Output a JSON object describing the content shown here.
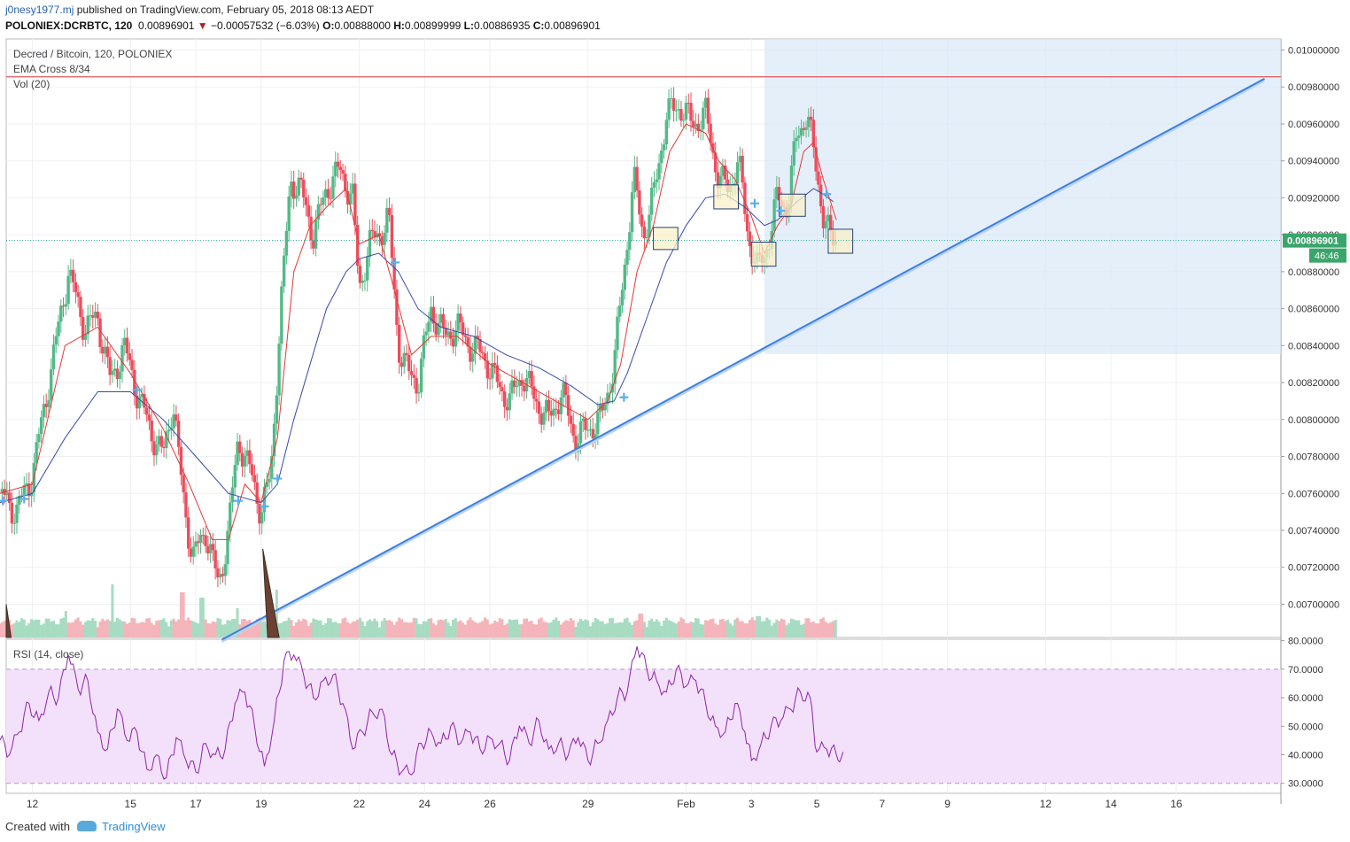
{
  "header": {
    "user": "j0nesy1977.mj",
    "published": "published on TradingView.com, February 05, 2018 08:13 AEDT",
    "symbol": "POLONIEX:DCRBTC, 120",
    "last": "0.00896901",
    "change": "−0.00057532 (−6.03%)",
    "o_label": "O:",
    "o": "0.00888000",
    "h_label": "H:",
    "h": "0.00899999",
    "l_label": "L:",
    "l": "0.00886935",
    "c_label": "C:",
    "c": "0.00896901"
  },
  "legend": {
    "title": "Decred / Bitcoin, 120, POLONIEX",
    "ema": "EMA Cross 8/34",
    "vol": "Vol (20)",
    "rsi": "RSI (14, close)"
  },
  "price_badge": "0.00896901",
  "countdown_badge": "46:46",
  "footer": {
    "created": "Created with",
    "brand": "TradingView"
  },
  "colors": {
    "up": "#53b987",
    "down": "#eb4d5c",
    "ema_fast": "#e53935",
    "ema_slow": "#3949ab",
    "rsi": "#8e24aa",
    "trend": "#3d7fe0",
    "resistance": "#e0575c",
    "rsi_band": "#f3e1fb"
  },
  "chart_data": [
    {
      "type": "candlestick",
      "title": "Decred / Bitcoin, 120, POLONIEX",
      "y_ticks": [
        "0.01000000",
        "0.00980000",
        "0.00960000",
        "0.00940000",
        "0.00920000",
        "0.00900000",
        "0.00880000",
        "0.00860000",
        "0.00840000",
        "0.00820000",
        "0.00800000",
        "0.00780000",
        "0.00760000",
        "0.00740000",
        "0.00720000",
        "0.00700000"
      ],
      "ylim": [
        0.00682,
        0.01006
      ],
      "x_ticks": [
        "12",
        "15",
        "17",
        "19",
        "22",
        "24",
        "26",
        "29",
        "Feb",
        "3",
        "5",
        "7",
        "9",
        "12",
        "14",
        "16"
      ],
      "x_tick_index": [
        1,
        4,
        6,
        8,
        11,
        13,
        15,
        18,
        21,
        23,
        25,
        27,
        29,
        32,
        34,
        36
      ],
      "x_range_index": [
        0.2,
        39.2
      ],
      "price_path": [
        {
          "x": 0.0,
          "p": 0.0076
        },
        {
          "x": 0.5,
          "p": 0.0075
        },
        {
          "x": 1.0,
          "p": 0.0077
        },
        {
          "x": 1.6,
          "p": 0.0083
        },
        {
          "x": 2.1,
          "p": 0.0088
        },
        {
          "x": 2.6,
          "p": 0.0085
        },
        {
          "x": 3.0,
          "p": 0.00855
        },
        {
          "x": 3.4,
          "p": 0.0082
        },
        {
          "x": 3.8,
          "p": 0.0084
        },
        {
          "x": 4.2,
          "p": 0.00815
        },
        {
          "x": 4.6,
          "p": 0.00795
        },
        {
          "x": 5.0,
          "p": 0.0078
        },
        {
          "x": 5.3,
          "p": 0.0081
        },
        {
          "x": 5.6,
          "p": 0.0076
        },
        {
          "x": 5.9,
          "p": 0.00725
        },
        {
          "x": 6.3,
          "p": 0.0074
        },
        {
          "x": 6.7,
          "p": 0.0071
        },
        {
          "x": 7.0,
          "p": 0.0074
        },
        {
          "x": 7.3,
          "p": 0.0079
        },
        {
          "x": 7.7,
          "p": 0.0077
        },
        {
          "x": 8.0,
          "p": 0.0075
        },
        {
          "x": 8.3,
          "p": 0.0077
        },
        {
          "x": 8.6,
          "p": 0.0086
        },
        {
          "x": 8.9,
          "p": 0.0093
        },
        {
          "x": 9.2,
          "p": 0.00925
        },
        {
          "x": 9.6,
          "p": 0.009
        },
        {
          "x": 10.0,
          "p": 0.00925
        },
        {
          "x": 10.4,
          "p": 0.00935
        },
        {
          "x": 10.8,
          "p": 0.0092
        },
        {
          "x": 11.0,
          "p": 0.0087
        },
        {
          "x": 11.3,
          "p": 0.00895
        },
        {
          "x": 11.6,
          "p": 0.009
        },
        {
          "x": 11.9,
          "p": 0.0091
        },
        {
          "x": 12.2,
          "p": 0.0084
        },
        {
          "x": 12.5,
          "p": 0.00825
        },
        {
          "x": 12.8,
          "p": 0.0082
        },
        {
          "x": 13.2,
          "p": 0.0086
        },
        {
          "x": 13.6,
          "p": 0.00845
        },
        {
          "x": 14.0,
          "p": 0.0085
        },
        {
          "x": 14.4,
          "p": 0.0084
        },
        {
          "x": 14.8,
          "p": 0.00835
        },
        {
          "x": 15.2,
          "p": 0.0082
        },
        {
          "x": 15.6,
          "p": 0.0081
        },
        {
          "x": 16.0,
          "p": 0.00825
        },
        {
          "x": 16.4,
          "p": 0.0081
        },
        {
          "x": 16.8,
          "p": 0.008
        },
        {
          "x": 17.2,
          "p": 0.00815
        },
        {
          "x": 17.6,
          "p": 0.0079
        },
        {
          "x": 18.0,
          "p": 0.00795
        },
        {
          "x": 18.4,
          "p": 0.008
        },
        {
          "x": 18.8,
          "p": 0.0083
        },
        {
          "x": 19.1,
          "p": 0.0088
        },
        {
          "x": 19.4,
          "p": 0.0093
        },
        {
          "x": 19.7,
          "p": 0.009
        },
        {
          "x": 20.0,
          "p": 0.0092
        },
        {
          "x": 20.4,
          "p": 0.00965
        },
        {
          "x": 20.8,
          "p": 0.0097
        },
        {
          "x": 21.2,
          "p": 0.0096
        },
        {
          "x": 21.6,
          "p": 0.00965
        },
        {
          "x": 22.0,
          "p": 0.0093
        },
        {
          "x": 22.3,
          "p": 0.00925
        },
        {
          "x": 22.6,
          "p": 0.0094
        },
        {
          "x": 22.9,
          "p": 0.009
        },
        {
          "x": 23.2,
          "p": 0.0088
        },
        {
          "x": 23.5,
          "p": 0.00895
        },
        {
          "x": 23.8,
          "p": 0.0092
        },
        {
          "x": 24.1,
          "p": 0.00915
        },
        {
          "x": 24.4,
          "p": 0.00955
        },
        {
          "x": 24.7,
          "p": 0.00965
        },
        {
          "x": 25.0,
          "p": 0.00935
        },
        {
          "x": 25.2,
          "p": 0.0091
        },
        {
          "x": 25.4,
          "p": 0.00898
        },
        {
          "x": 25.55,
          "p": 0.00897
        }
      ],
      "ema_fast_path": [
        {
          "x": 0.0,
          "p": 0.0076
        },
        {
          "x": 1.0,
          "p": 0.00765
        },
        {
          "x": 2.0,
          "p": 0.0084
        },
        {
          "x": 3.0,
          "p": 0.0085
        },
        {
          "x": 4.0,
          "p": 0.00825
        },
        {
          "x": 5.0,
          "p": 0.00795
        },
        {
          "x": 5.8,
          "p": 0.00765
        },
        {
          "x": 6.5,
          "p": 0.00735
        },
        {
          "x": 7.0,
          "p": 0.00735
        },
        {
          "x": 7.5,
          "p": 0.00765
        },
        {
          "x": 8.0,
          "p": 0.00755
        },
        {
          "x": 8.5,
          "p": 0.0079
        },
        {
          "x": 9.0,
          "p": 0.0088
        },
        {
          "x": 9.5,
          "p": 0.00905
        },
        {
          "x": 10.0,
          "p": 0.00915
        },
        {
          "x": 10.6,
          "p": 0.00925
        },
        {
          "x": 11.0,
          "p": 0.00895
        },
        {
          "x": 11.6,
          "p": 0.009
        },
        {
          "x": 12.0,
          "p": 0.00875
        },
        {
          "x": 12.6,
          "p": 0.00835
        },
        {
          "x": 13.2,
          "p": 0.00845
        },
        {
          "x": 14.0,
          "p": 0.00845
        },
        {
          "x": 15.0,
          "p": 0.0083
        },
        {
          "x": 16.0,
          "p": 0.0082
        },
        {
          "x": 17.0,
          "p": 0.0081
        },
        {
          "x": 18.0,
          "p": 0.008
        },
        {
          "x": 18.6,
          "p": 0.0081
        },
        {
          "x": 19.0,
          "p": 0.0083
        },
        {
          "x": 19.5,
          "p": 0.0088
        },
        {
          "x": 20.0,
          "p": 0.00905
        },
        {
          "x": 20.5,
          "p": 0.00945
        },
        {
          "x": 21.0,
          "p": 0.0096
        },
        {
          "x": 21.6,
          "p": 0.00955
        },
        {
          "x": 22.0,
          "p": 0.0094
        },
        {
          "x": 22.5,
          "p": 0.0093
        },
        {
          "x": 23.0,
          "p": 0.0091
        },
        {
          "x": 23.4,
          "p": 0.0089
        },
        {
          "x": 23.8,
          "p": 0.00905
        },
        {
          "x": 24.2,
          "p": 0.00915
        },
        {
          "x": 24.6,
          "p": 0.00945
        },
        {
          "x": 24.9,
          "p": 0.0095
        },
        {
          "x": 25.2,
          "p": 0.0093
        },
        {
          "x": 25.6,
          "p": 0.00908
        }
      ],
      "ema_slow_path": [
        {
          "x": 0.0,
          "p": 0.00755
        },
        {
          "x": 1.0,
          "p": 0.0076
        },
        {
          "x": 2.0,
          "p": 0.0079
        },
        {
          "x": 3.0,
          "p": 0.00815
        },
        {
          "x": 4.0,
          "p": 0.00815
        },
        {
          "x": 5.0,
          "p": 0.008
        },
        {
          "x": 6.0,
          "p": 0.0078
        },
        {
          "x": 7.0,
          "p": 0.0076
        },
        {
          "x": 8.0,
          "p": 0.00755
        },
        {
          "x": 8.5,
          "p": 0.00765
        },
        {
          "x": 9.0,
          "p": 0.008
        },
        {
          "x": 9.5,
          "p": 0.0083
        },
        {
          "x": 10.0,
          "p": 0.0086
        },
        {
          "x": 10.6,
          "p": 0.0088
        },
        {
          "x": 11.0,
          "p": 0.00887
        },
        {
          "x": 11.6,
          "p": 0.0089
        },
        {
          "x": 12.2,
          "p": 0.0088
        },
        {
          "x": 12.8,
          "p": 0.0086
        },
        {
          "x": 13.5,
          "p": 0.0085
        },
        {
          "x": 14.5,
          "p": 0.00845
        },
        {
          "x": 15.5,
          "p": 0.00835
        },
        {
          "x": 16.5,
          "p": 0.00828
        },
        {
          "x": 17.5,
          "p": 0.00818
        },
        {
          "x": 18.3,
          "p": 0.00808
        },
        {
          "x": 18.8,
          "p": 0.0081
        },
        {
          "x": 19.2,
          "p": 0.00825
        },
        {
          "x": 19.8,
          "p": 0.00855
        },
        {
          "x": 20.4,
          "p": 0.00885
        },
        {
          "x": 21.0,
          "p": 0.00905
        },
        {
          "x": 21.6,
          "p": 0.0092
        },
        {
          "x": 22.2,
          "p": 0.00922
        },
        {
          "x": 22.8,
          "p": 0.00915
        },
        {
          "x": 23.4,
          "p": 0.00905
        },
        {
          "x": 23.8,
          "p": 0.00908
        },
        {
          "x": 24.4,
          "p": 0.00918
        },
        {
          "x": 24.9,
          "p": 0.00925
        },
        {
          "x": 25.2,
          "p": 0.00922
        },
        {
          "x": 25.5,
          "p": 0.00918
        }
      ],
      "resistance_level": 0.009855,
      "trendline": [
        {
          "x": 6.8,
          "p": 0.006808
        },
        {
          "x": 38.7,
          "p": 0.009845
        }
      ],
      "projection_zone": {
        "x_from": 23.4,
        "x_to": 39.2,
        "p_low": 0.008355,
        "p_high": 0.01006
      },
      "highlight_boxes": [
        {
          "x0": 20.0,
          "x1": 20.75,
          "p_low": 0.00892,
          "p_high": 0.00904
        },
        {
          "x0": 21.85,
          "x1": 22.6,
          "p_low": 0.00914,
          "p_high": 0.00927
        },
        {
          "x0": 23.0,
          "x1": 23.75,
          "p_low": 0.00883,
          "p_high": 0.00896
        },
        {
          "x0": 23.85,
          "x1": 24.65,
          "p_low": 0.0091,
          "p_high": 0.00922
        },
        {
          "x0": 25.35,
          "x1": 26.1,
          "p_low": 0.0089,
          "p_high": 0.00903
        }
      ],
      "cross_markers": [
        {
          "x": 0.1,
          "p": 0.00756
        },
        {
          "x": 0.75,
          "p": 0.00757
        },
        {
          "x": 4.2,
          "p": 0.00816
        },
        {
          "x": 7.3,
          "p": 0.00756
        },
        {
          "x": 8.1,
          "p": 0.00753
        },
        {
          "x": 8.5,
          "p": 0.00768
        },
        {
          "x": 12.1,
          "p": 0.00885
        },
        {
          "x": 19.1,
          "p": 0.00812
        },
        {
          "x": 23.1,
          "p": 0.00917
        },
        {
          "x": 23.9,
          "p": 0.00913
        },
        {
          "x": 25.3,
          "p": 0.00922
        }
      ],
      "volume_peaks": [
        {
          "x": 3.45,
          "v": 1.0
        },
        {
          "x": 5.6,
          "v": 0.85
        },
        {
          "x": 6.2,
          "v": 0.75
        },
        {
          "x": 7.3,
          "v": 0.55
        },
        {
          "x": 8.5,
          "v": 0.9
        },
        {
          "x": 2.0,
          "v": 0.5
        },
        {
          "x": 19.6,
          "v": 0.45
        },
        {
          "x": 23.2,
          "v": 0.4
        }
      ],
      "last_price": 0.00896901
    },
    {
      "type": "line",
      "title": "RSI (14, close)",
      "y_ticks": [
        "80.0000",
        "70.0000",
        "60.0000",
        "50.0000",
        "40.0000",
        "30.0000"
      ],
      "ylim": [
        26.5,
        80.5
      ],
      "band": [
        30,
        70
      ],
      "rsi_path": [
        {
          "x": 0.0,
          "v": 45
        },
        {
          "x": 0.3,
          "v": 40
        },
        {
          "x": 0.6,
          "v": 48
        },
        {
          "x": 0.9,
          "v": 58
        },
        {
          "x": 1.2,
          "v": 52
        },
        {
          "x": 1.5,
          "v": 62
        },
        {
          "x": 1.8,
          "v": 60
        },
        {
          "x": 2.1,
          "v": 75
        },
        {
          "x": 2.4,
          "v": 63
        },
        {
          "x": 2.7,
          "v": 66
        },
        {
          "x": 3.0,
          "v": 48
        },
        {
          "x": 3.3,
          "v": 42
        },
        {
          "x": 3.6,
          "v": 56
        },
        {
          "x": 3.9,
          "v": 45
        },
        {
          "x": 4.2,
          "v": 48
        },
        {
          "x": 4.5,
          "v": 35
        },
        {
          "x": 4.8,
          "v": 40
        },
        {
          "x": 5.1,
          "v": 32
        },
        {
          "x": 5.4,
          "v": 46
        },
        {
          "x": 5.7,
          "v": 38
        },
        {
          "x": 6.0,
          "v": 34
        },
        {
          "x": 6.3,
          "v": 44
        },
        {
          "x": 6.6,
          "v": 40
        },
        {
          "x": 6.9,
          "v": 42
        },
        {
          "x": 7.2,
          "v": 58
        },
        {
          "x": 7.5,
          "v": 62
        },
        {
          "x": 7.8,
          "v": 50
        },
        {
          "x": 8.1,
          "v": 36
        },
        {
          "x": 8.4,
          "v": 52
        },
        {
          "x": 8.7,
          "v": 73
        },
        {
          "x": 9.0,
          "v": 75
        },
        {
          "x": 9.3,
          "v": 68
        },
        {
          "x": 9.6,
          "v": 60
        },
        {
          "x": 9.9,
          "v": 66
        },
        {
          "x": 10.2,
          "v": 68
        },
        {
          "x": 10.5,
          "v": 58
        },
        {
          "x": 10.8,
          "v": 42
        },
        {
          "x": 11.1,
          "v": 48
        },
        {
          "x": 11.4,
          "v": 55
        },
        {
          "x": 11.7,
          "v": 56
        },
        {
          "x": 12.0,
          "v": 40
        },
        {
          "x": 12.3,
          "v": 34
        },
        {
          "x": 12.6,
          "v": 33
        },
        {
          "x": 12.9,
          "v": 44
        },
        {
          "x": 13.2,
          "v": 48
        },
        {
          "x": 13.5,
          "v": 44
        },
        {
          "x": 13.8,
          "v": 50
        },
        {
          "x": 14.1,
          "v": 44
        },
        {
          "x": 14.4,
          "v": 48
        },
        {
          "x": 14.7,
          "v": 42
        },
        {
          "x": 15.0,
          "v": 46
        },
        {
          "x": 15.3,
          "v": 44
        },
        {
          "x": 15.6,
          "v": 38
        },
        {
          "x": 15.9,
          "v": 50
        },
        {
          "x": 16.2,
          "v": 44
        },
        {
          "x": 16.5,
          "v": 52
        },
        {
          "x": 16.8,
          "v": 42
        },
        {
          "x": 17.1,
          "v": 44
        },
        {
          "x": 17.4,
          "v": 40
        },
        {
          "x": 17.7,
          "v": 46
        },
        {
          "x": 18.0,
          "v": 38
        },
        {
          "x": 18.3,
          "v": 44
        },
        {
          "x": 18.6,
          "v": 52
        },
        {
          "x": 18.9,
          "v": 60
        },
        {
          "x": 19.2,
          "v": 62
        },
        {
          "x": 19.5,
          "v": 78
        },
        {
          "x": 19.8,
          "v": 70
        },
        {
          "x": 20.1,
          "v": 66
        },
        {
          "x": 20.4,
          "v": 62
        },
        {
          "x": 20.7,
          "v": 70
        },
        {
          "x": 21.0,
          "v": 64
        },
        {
          "x": 21.3,
          "v": 66
        },
        {
          "x": 21.6,
          "v": 58
        },
        {
          "x": 21.9,
          "v": 50
        },
        {
          "x": 22.2,
          "v": 48
        },
        {
          "x": 22.5,
          "v": 58
        },
        {
          "x": 22.8,
          "v": 48
        },
        {
          "x": 23.0,
          "v": 38
        },
        {
          "x": 23.3,
          "v": 44
        },
        {
          "x": 23.6,
          "v": 50
        },
        {
          "x": 23.9,
          "v": 52
        },
        {
          "x": 24.2,
          "v": 56
        },
        {
          "x": 24.5,
          "v": 62
        },
        {
          "x": 24.8,
          "v": 60
        },
        {
          "x": 25.0,
          "v": 41
        },
        {
          "x": 25.3,
          "v": 42
        },
        {
          "x": 25.6,
          "v": 40
        },
        {
          "x": 25.8,
          "v": 41
        }
      ]
    }
  ]
}
